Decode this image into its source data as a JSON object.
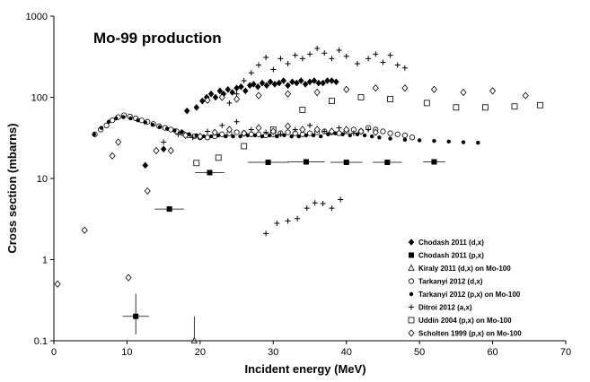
{
  "chart_data": {
    "type": "scatter",
    "title": "Mo-99 production",
    "xlabel": "Incident energy (MeV)",
    "ylabel": "Cross section (mbarns)",
    "xlim": [
      0,
      70
    ],
    "ylim": [
      0.1,
      1000
    ],
    "yscale": "log",
    "grid": false,
    "legend_position": "bottom-right",
    "x_ticks": [
      0,
      10,
      20,
      30,
      40,
      50,
      60,
      70
    ],
    "x_tick_labels": [
      "0",
      "10",
      "20",
      "30",
      "40",
      "50",
      "60",
      "70"
    ],
    "y_ticks": [
      0.1,
      1,
      10,
      100,
      1000
    ],
    "y_tick_labels": [
      "0.1",
      "1",
      "10",
      "100",
      "1000"
    ],
    "series": [
      {
        "name": "Chodash 2011 (d,x)",
        "marker": "diamond-filled",
        "points": [
          {
            "x": 12.5,
            "y": 14.5
          },
          {
            "x": 15.0,
            "y": 23
          },
          {
            "x": 17.5,
            "y": 37
          },
          {
            "x": 18.2,
            "y": 68
          },
          {
            "x": 19.5,
            "y": 75
          },
          {
            "x": 20.3,
            "y": 90
          },
          {
            "x": 20.9,
            "y": 100
          },
          {
            "x": 21.5,
            "y": 110
          },
          {
            "x": 22.1,
            "y": 100
          },
          {
            "x": 22.7,
            "y": 120
          },
          {
            "x": 23.2,
            "y": 110
          },
          {
            "x": 23.8,
            "y": 125
          },
          {
            "x": 24.4,
            "y": 115
          },
          {
            "x": 25.0,
            "y": 130
          },
          {
            "x": 25.6,
            "y": 135
          },
          {
            "x": 26.2,
            "y": 120
          },
          {
            "x": 26.8,
            "y": 140
          },
          {
            "x": 27.3,
            "y": 145
          },
          {
            "x": 27.9,
            "y": 135
          },
          {
            "x": 28.5,
            "y": 150
          },
          {
            "x": 29.1,
            "y": 140
          },
          {
            "x": 29.6,
            "y": 155
          },
          {
            "x": 30.2,
            "y": 145
          },
          {
            "x": 30.8,
            "y": 150
          },
          {
            "x": 31.4,
            "y": 160
          },
          {
            "x": 32.0,
            "y": 140
          },
          {
            "x": 32.6,
            "y": 155
          },
          {
            "x": 33.2,
            "y": 150
          },
          {
            "x": 33.8,
            "y": 160
          },
          {
            "x": 34.4,
            "y": 145
          },
          {
            "x": 35.0,
            "y": 155
          },
          {
            "x": 35.6,
            "y": 160
          },
          {
            "x": 36.2,
            "y": 150
          },
          {
            "x": 36.8,
            "y": 150
          },
          {
            "x": 37.4,
            "y": 160
          },
          {
            "x": 38.0,
            "y": 160
          },
          {
            "x": 38.6,
            "y": 155
          }
        ]
      },
      {
        "name": "Chodash 2011 (p,x)",
        "marker": "square-filled",
        "points": [
          {
            "x": 11.2,
            "y": 0.2,
            "xerr": 1.8,
            "yerr_low": 0.08,
            "yerr_high": 0.18
          },
          {
            "x": 15.8,
            "y": 4.2,
            "xerr": 2.0
          },
          {
            "x": 21.3,
            "y": 11.8,
            "xerr": 2.0
          },
          {
            "x": 29.3,
            "y": 15.8,
            "xerr": 2.8
          },
          {
            "x": 34.5,
            "y": 16.0,
            "xerr": 2.5
          },
          {
            "x": 40.0,
            "y": 15.8,
            "xerr": 2.2
          },
          {
            "x": 45.6,
            "y": 15.8,
            "xerr": 2.0
          },
          {
            "x": 52.0,
            "y": 16.0,
            "xerr": 1.5
          }
        ]
      },
      {
        "name": "Kiraly 2011 (d,x) on Mo-100",
        "marker": "triangle-open",
        "points": [
          {
            "x": 19.2,
            "y": 0.1,
            "yerr_high": 0.1
          }
        ]
      },
      {
        "name": "Tarkanyi 2012 (d,x)",
        "marker": "circle-open",
        "points": [
          {
            "x": 5.6,
            "y": 35
          },
          {
            "x": 6.4,
            "y": 40
          },
          {
            "x": 7.2,
            "y": 45
          },
          {
            "x": 8.0,
            "y": 52
          },
          {
            "x": 8.8,
            "y": 57
          },
          {
            "x": 9.6,
            "y": 60
          },
          {
            "x": 10.4,
            "y": 58
          },
          {
            "x": 11.2,
            "y": 55
          },
          {
            "x": 12.0,
            "y": 52
          },
          {
            "x": 12.8,
            "y": 50
          },
          {
            "x": 13.6,
            "y": 47
          },
          {
            "x": 14.4,
            "y": 44
          },
          {
            "x": 15.2,
            "y": 42
          },
          {
            "x": 16.0,
            "y": 40
          },
          {
            "x": 16.8,
            "y": 38
          },
          {
            "x": 17.6,
            "y": 36
          },
          {
            "x": 18.4,
            "y": 34
          },
          {
            "x": 19.2,
            "y": 33
          },
          {
            "x": 20.0,
            "y": 32
          },
          {
            "x": 21.0,
            "y": 32
          },
          {
            "x": 22.0,
            "y": 33
          },
          {
            "x": 23.0,
            "y": 35
          },
          {
            "x": 24.0,
            "y": 36
          },
          {
            "x": 25.0,
            "y": 37
          },
          {
            "x": 26.0,
            "y": 36
          },
          {
            "x": 27.0,
            "y": 35
          },
          {
            "x": 28.0,
            "y": 35
          },
          {
            "x": 29.0,
            "y": 34
          },
          {
            "x": 30.0,
            "y": 35
          },
          {
            "x": 31.0,
            "y": 36
          },
          {
            "x": 32.0,
            "y": 37
          },
          {
            "x": 33.0,
            "y": 36
          },
          {
            "x": 34.0,
            "y": 35
          },
          {
            "x": 35.0,
            "y": 36
          },
          {
            "x": 36.0,
            "y": 37
          },
          {
            "x": 37.0,
            "y": 38
          },
          {
            "x": 38.0,
            "y": 37
          },
          {
            "x": 39.0,
            "y": 36
          },
          {
            "x": 40.0,
            "y": 38
          },
          {
            "x": 41.0,
            "y": 40
          },
          {
            "x": 42.0,
            "y": 38
          },
          {
            "x": 43.0,
            "y": 42
          },
          {
            "x": 44.0,
            "y": 40
          },
          {
            "x": 45.0,
            "y": 38
          },
          {
            "x": 46.0,
            "y": 36
          },
          {
            "x": 47.0,
            "y": 35
          },
          {
            "x": 48.0,
            "y": 34
          },
          {
            "x": 49.0,
            "y": 32
          }
        ]
      },
      {
        "name": "Tarkanyi 2012 (p,x) on Mo-100",
        "marker": "circle-filled",
        "points": [
          {
            "x": 5.5,
            "y": 35
          },
          {
            "x": 6.5,
            "y": 42
          },
          {
            "x": 7.5,
            "y": 50
          },
          {
            "x": 8.5,
            "y": 55
          },
          {
            "x": 9.5,
            "y": 57
          },
          {
            "x": 10.5,
            "y": 55
          },
          {
            "x": 11.5,
            "y": 52
          },
          {
            "x": 12.5,
            "y": 49
          },
          {
            "x": 13.5,
            "y": 46
          },
          {
            "x": 14.5,
            "y": 43
          },
          {
            "x": 15.5,
            "y": 41
          },
          {
            "x": 16.5,
            "y": 39
          },
          {
            "x": 17.5,
            "y": 37
          },
          {
            "x": 18.5,
            "y": 35
          },
          {
            "x": 19.5,
            "y": 34
          },
          {
            "x": 20.5,
            "y": 33
          },
          {
            "x": 21.5,
            "y": 33
          },
          {
            "x": 22.5,
            "y": 34
          },
          {
            "x": 23.5,
            "y": 33
          },
          {
            "x": 24.5,
            "y": 33
          },
          {
            "x": 25.5,
            "y": 33
          },
          {
            "x": 26.5,
            "y": 34
          },
          {
            "x": 27.5,
            "y": 34
          },
          {
            "x": 28.5,
            "y": 33
          },
          {
            "x": 29.5,
            "y": 34
          },
          {
            "x": 30.5,
            "y": 33
          },
          {
            "x": 31.5,
            "y": 34
          },
          {
            "x": 32.5,
            "y": 33
          },
          {
            "x": 33.5,
            "y": 33
          },
          {
            "x": 34.5,
            "y": 34
          },
          {
            "x": 35.5,
            "y": 34
          },
          {
            "x": 36.5,
            "y": 33
          },
          {
            "x": 37.5,
            "y": 35
          },
          {
            "x": 38.5,
            "y": 36
          },
          {
            "x": 39.5,
            "y": 35
          },
          {
            "x": 40.5,
            "y": 34
          },
          {
            "x": 41.5,
            "y": 35
          },
          {
            "x": 42.5,
            "y": 34
          },
          {
            "x": 43.5,
            "y": 33
          },
          {
            "x": 44.5,
            "y": 32
          },
          {
            "x": 46.0,
            "y": 31
          },
          {
            "x": 48.0,
            "y": 30
          },
          {
            "x": 50.0,
            "y": 29.5
          },
          {
            "x": 52.0,
            "y": 29
          },
          {
            "x": 54.0,
            "y": 28.5
          },
          {
            "x": 56.0,
            "y": 28
          },
          {
            "x": 58.0,
            "y": 27.5
          }
        ]
      },
      {
        "name": "Ditroi 2012 (a,x)",
        "marker": "plus",
        "points": [
          {
            "x": 29.0,
            "y": 2.1
          },
          {
            "x": 30.5,
            "y": 2.8
          },
          {
            "x": 32.0,
            "y": 3.0
          },
          {
            "x": 33.3,
            "y": 3.2
          },
          {
            "x": 34.6,
            "y": 4.3
          },
          {
            "x": 35.7,
            "y": 5.0
          },
          {
            "x": 36.8,
            "y": 4.9
          },
          {
            "x": 38.0,
            "y": 4.3
          },
          {
            "x": 39.2,
            "y": 5.5
          },
          {
            "x": 24.0,
            "y": 85
          },
          {
            "x": 25.0,
            "y": 110
          },
          {
            "x": 26.0,
            "y": 160
          },
          {
            "x": 27.0,
            "y": 200
          },
          {
            "x": 28.0,
            "y": 250
          },
          {
            "x": 29.0,
            "y": 310
          },
          {
            "x": 30.0,
            "y": 220
          },
          {
            "x": 31.0,
            "y": 300
          },
          {
            "x": 32.0,
            "y": 260
          },
          {
            "x": 33.0,
            "y": 330
          },
          {
            "x": 34.0,
            "y": 300
          },
          {
            "x": 35.0,
            "y": 340
          },
          {
            "x": 36.0,
            "y": 400
          },
          {
            "x": 37.0,
            "y": 350
          },
          {
            "x": 38.0,
            "y": 300
          },
          {
            "x": 39.0,
            "y": 380
          },
          {
            "x": 40.0,
            "y": 320
          },
          {
            "x": 41.5,
            "y": 260
          },
          {
            "x": 43.0,
            "y": 300
          },
          {
            "x": 44.0,
            "y": 340
          },
          {
            "x": 45.0,
            "y": 270
          },
          {
            "x": 46.0,
            "y": 330
          },
          {
            "x": 47.0,
            "y": 250
          },
          {
            "x": 48.0,
            "y": 230
          },
          {
            "x": 15.0,
            "y": 28
          },
          {
            "x": 17.0,
            "y": 35
          },
          {
            "x": 19.0,
            "y": 32
          },
          {
            "x": 21.0,
            "y": 38
          },
          {
            "x": 23.0,
            "y": 45
          },
          {
            "x": 25.0,
            "y": 50
          },
          {
            "x": 27.0,
            "y": 40
          },
          {
            "x": 29.0,
            "y": 37
          },
          {
            "x": 31.0,
            "y": 35
          },
          {
            "x": 33.0,
            "y": 40
          },
          {
            "x": 35.0,
            "y": 45
          },
          {
            "x": 37.0,
            "y": 38
          },
          {
            "x": 39.0,
            "y": 42
          },
          {
            "x": 41.0,
            "y": 36
          },
          {
            "x": 43.0,
            "y": 40
          }
        ]
      },
      {
        "name": "Uddin 2004 (p,x) on Mo-100",
        "marker": "square-open",
        "points": [
          {
            "x": 19.5,
            "y": 15.5
          },
          {
            "x": 22.5,
            "y": 18
          },
          {
            "x": 26.0,
            "y": 25
          },
          {
            "x": 30.0,
            "y": 40
          },
          {
            "x": 34.0,
            "y": 70
          },
          {
            "x": 38.0,
            "y": 90
          },
          {
            "x": 42.0,
            "y": 100
          },
          {
            "x": 46.0,
            "y": 95
          },
          {
            "x": 51.0,
            "y": 85
          },
          {
            "x": 55.0,
            "y": 75
          },
          {
            "x": 59.0,
            "y": 75
          },
          {
            "x": 63.0,
            "y": 77
          },
          {
            "x": 66.5,
            "y": 80
          }
        ]
      },
      {
        "name": "Scholten 1999 (p,x) on Mo-100",
        "marker": "diamond-open",
        "points": [
          {
            "x": 0.5,
            "y": 0.5
          },
          {
            "x": 4.2,
            "y": 2.3
          },
          {
            "x": 10.2,
            "y": 0.6
          },
          {
            "x": 12.8,
            "y": 7
          },
          {
            "x": 8.0,
            "y": 19
          },
          {
            "x": 8.8,
            "y": 28
          },
          {
            "x": 14.0,
            "y": 22
          },
          {
            "x": 16.0,
            "y": 22
          },
          {
            "x": 18.0,
            "y": 34
          },
          {
            "x": 20.0,
            "y": 33
          },
          {
            "x": 22.0,
            "y": 37
          },
          {
            "x": 24.0,
            "y": 40
          },
          {
            "x": 26.0,
            "y": 36
          },
          {
            "x": 28.0,
            "y": 42
          },
          {
            "x": 30.0,
            "y": 38
          },
          {
            "x": 32.0,
            "y": 44
          },
          {
            "x": 34.0,
            "y": 40
          },
          {
            "x": 36.0,
            "y": 40
          },
          {
            "x": 38.0,
            "y": 38
          },
          {
            "x": 40.0,
            "y": 40
          },
          {
            "x": 42.0,
            "y": 38
          },
          {
            "x": 44.0,
            "y": 37
          },
          {
            "x": 21.0,
            "y": 92
          },
          {
            "x": 23.0,
            "y": 100
          },
          {
            "x": 25.0,
            "y": 95
          },
          {
            "x": 28.0,
            "y": 105
          },
          {
            "x": 32.0,
            "y": 110
          },
          {
            "x": 36.0,
            "y": 115
          },
          {
            "x": 40.0,
            "y": 125
          },
          {
            "x": 44.0,
            "y": 130
          },
          {
            "x": 48.0,
            "y": 130
          },
          {
            "x": 52.0,
            "y": 125
          },
          {
            "x": 56.0,
            "y": 115
          },
          {
            "x": 60.0,
            "y": 120
          },
          {
            "x": 64.5,
            "y": 105
          }
        ]
      }
    ]
  }
}
